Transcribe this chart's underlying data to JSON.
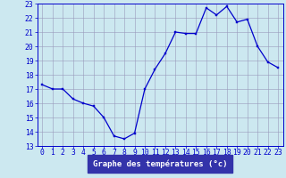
{
  "x": [
    0,
    1,
    2,
    3,
    4,
    5,
    6,
    7,
    8,
    9,
    10,
    11,
    12,
    13,
    14,
    15,
    16,
    17,
    18,
    19,
    20,
    21,
    22,
    23
  ],
  "y": [
    17.3,
    17.0,
    17.0,
    16.3,
    16.0,
    15.8,
    15.0,
    13.7,
    13.5,
    13.9,
    17.0,
    18.4,
    19.5,
    21.0,
    20.9,
    20.9,
    22.7,
    22.2,
    22.8,
    21.7,
    21.9,
    20.0,
    18.9,
    18.5
  ],
  "xlim": [
    -0.5,
    23.5
  ],
  "ylim": [
    13,
    23
  ],
  "yticks": [
    13,
    14,
    15,
    16,
    17,
    18,
    19,
    20,
    21,
    22,
    23
  ],
  "xticks": [
    0,
    1,
    2,
    3,
    4,
    5,
    6,
    7,
    8,
    9,
    10,
    11,
    12,
    13,
    14,
    15,
    16,
    17,
    18,
    19,
    20,
    21,
    22,
    23
  ],
  "xlabel": "Graphe des températures (°c)",
  "line_color": "#0000cc",
  "marker_color": "#0000cc",
  "bg_color": "#cce8f0",
  "grid_color": "#9999bb",
  "axis_color": "#0000cc",
  "label_color": "#0000cc",
  "xlabel_bg": "#3333aa",
  "xlabel_fg": "#ffffff",
  "tick_fontsize": 5.8,
  "label_fontsize": 6.5
}
